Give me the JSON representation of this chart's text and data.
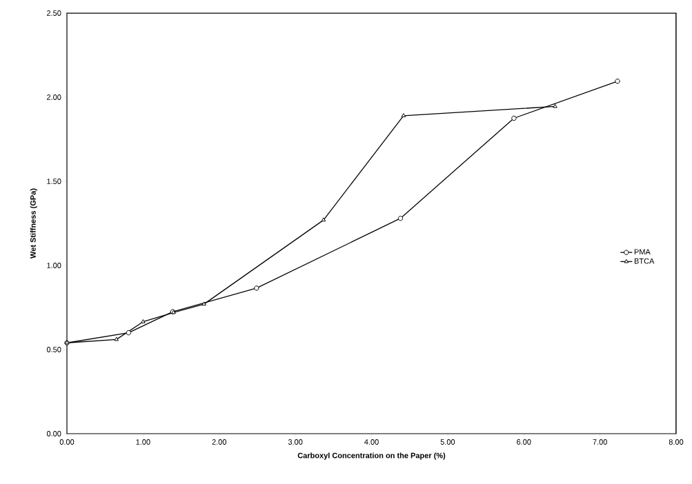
{
  "chart_data": {
    "type": "line",
    "xlabel": "Carboxyl Concentration on the Paper (%)",
    "ylabel": "Wet Stiffness (GPa)",
    "xlim": [
      0,
      8
    ],
    "ylim": [
      0,
      2.5
    ],
    "xticks": [
      {
        "value": 0,
        "label": "0.00"
      },
      {
        "value": 1,
        "label": "1.00"
      },
      {
        "value": 2,
        "label": "2.00"
      },
      {
        "value": 3,
        "label": "3.00"
      },
      {
        "value": 4,
        "label": "4.00"
      },
      {
        "value": 5,
        "label": "5.00"
      },
      {
        "value": 6,
        "label": "6.00"
      },
      {
        "value": 7,
        "label": "7.00"
      },
      {
        "value": 8,
        "label": "8.00"
      }
    ],
    "yticks": [
      {
        "value": 0,
        "label": "0.00"
      },
      {
        "value": 0.5,
        "label": "0.50"
      },
      {
        "value": 1,
        "label": "1.00"
      },
      {
        "value": 1.5,
        "label": "1.50"
      },
      {
        "value": 2,
        "label": "2.00"
      },
      {
        "value": 2.5,
        "label": "2.50"
      }
    ],
    "grid": false,
    "legend": "right",
    "line_style": "solid",
    "series": [
      {
        "name": "PMA",
        "color": "#000000",
        "marker": "circle",
        "x": [
          0,
          0.81,
          1.39,
          2.49,
          4.38,
          5.87,
          7.23
        ],
        "values": [
          0.54,
          0.6,
          0.725,
          0.865,
          1.28,
          1.875,
          2.095
        ]
      },
      {
        "name": "BTCA",
        "color": "#000000",
        "marker": "triangle",
        "x": [
          0,
          0.65,
          1.0,
          1.4,
          1.8,
          3.37,
          4.42,
          6.41
        ],
        "values": [
          0.54,
          0.56,
          0.665,
          0.72,
          0.77,
          1.27,
          1.89,
          1.945
        ]
      }
    ]
  }
}
